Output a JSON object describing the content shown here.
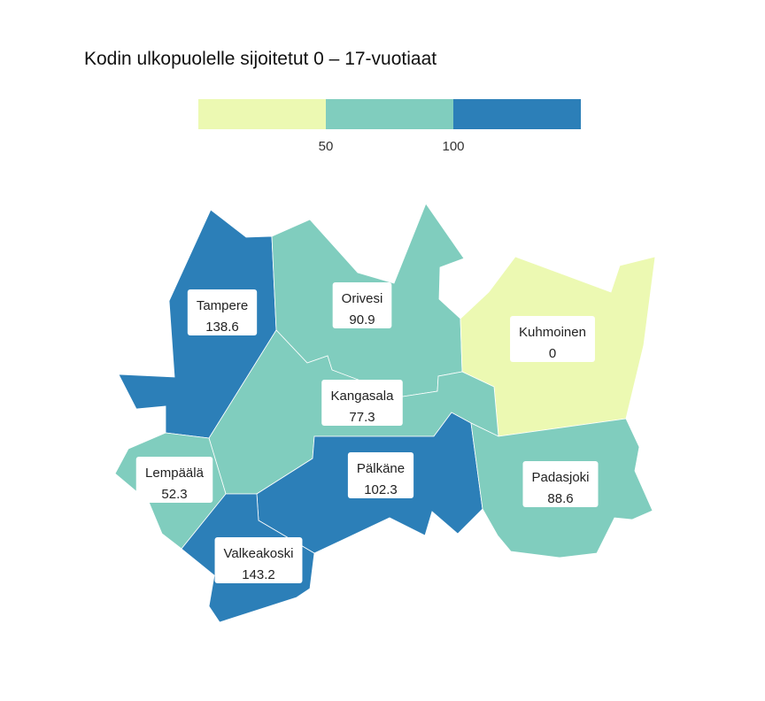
{
  "title": "Kodin ulkopuolelle sijoitetut 0 – 17-vuotiaat",
  "legend": {
    "bins": [
      {
        "from": null,
        "to": 50,
        "color": "#ecf9b2"
      },
      {
        "from": 50,
        "to": 100,
        "color": "#80cdbe"
      },
      {
        "from": 100,
        "to": null,
        "color": "#2c7fb8"
      }
    ],
    "ticks": [
      "50",
      "100"
    ]
  },
  "chart_data": {
    "type": "choropleth",
    "regions": [
      {
        "name": "Tampere",
        "value_label": "138.6",
        "value": 138.6
      },
      {
        "name": "Orivesi",
        "value_label": "90.9",
        "value": 90.9
      },
      {
        "name": "Kuhmoinen",
        "value_label": "0",
        "value": 0
      },
      {
        "name": "Kangasala",
        "value_label": "77.3",
        "value": 77.3
      },
      {
        "name": "Lempäälä",
        "value_label": "52.3",
        "value": 52.3
      },
      {
        "name": "Pälkäne",
        "value_label": "102.3",
        "value": 102.3
      },
      {
        "name": "Padasjoki",
        "value_label": "88.6",
        "value": 88.6
      },
      {
        "name": "Valkeakoski",
        "value_label": "143.2",
        "value": 143.2
      }
    ]
  }
}
